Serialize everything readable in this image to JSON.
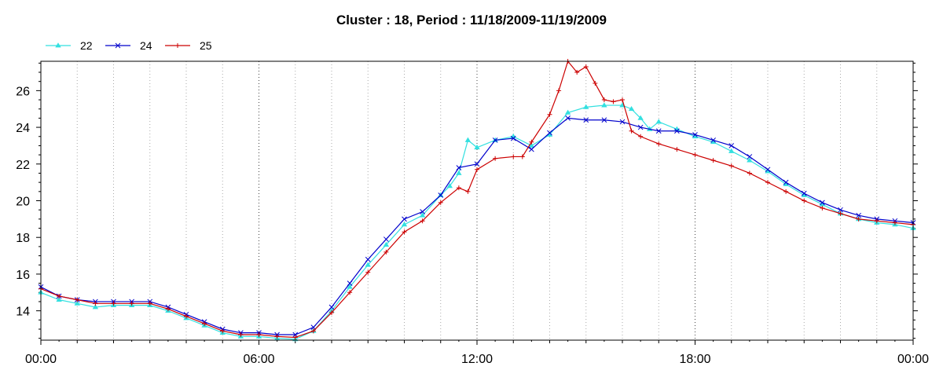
{
  "chart_data": {
    "type": "line",
    "title": "Cluster : 18, Period : 11/18/2009-11/19/2009",
    "xlabel": "",
    "ylabel": "",
    "x_unit": "hours",
    "xlim": [
      0,
      24
    ],
    "ylim": [
      12.4,
      27.6
    ],
    "x_ticks": [
      0,
      6,
      12,
      18,
      24
    ],
    "x_tick_labels": [
      "00:00",
      "06:00",
      "12:00",
      "18:00",
      "00:00"
    ],
    "y_ticks": [
      14,
      16,
      18,
      20,
      22,
      24,
      26
    ],
    "y_tick_labels": [
      "14",
      "16",
      "18",
      "20",
      "22",
      "24",
      "26"
    ],
    "grid": "vertical-dotted",
    "legend_position": "top-left",
    "series": [
      {
        "name": "22",
        "color": "#33e0e0",
        "marker": "triangle",
        "x": [
          0,
          0.5,
          1,
          1.5,
          2,
          2.5,
          3,
          3.5,
          4,
          4.5,
          5,
          5.5,
          6,
          6.5,
          7,
          7.5,
          8,
          8.5,
          9,
          9.5,
          10,
          10.5,
          11,
          11.25,
          11.5,
          11.75,
          12,
          12.5,
          13,
          13.5,
          14,
          14.5,
          15,
          15.5,
          16,
          16.25,
          16.5,
          16.75,
          17,
          17.5,
          18,
          18.5,
          19,
          19.5,
          20,
          20.5,
          21,
          21.5,
          22,
          22.5,
          23,
          23.5,
          24
        ],
        "y": [
          15.0,
          14.6,
          14.4,
          14.2,
          14.3,
          14.3,
          14.3,
          14.0,
          13.6,
          13.2,
          12.8,
          12.6,
          12.6,
          12.5,
          12.45,
          12.9,
          14.0,
          15.3,
          16.5,
          17.6,
          18.7,
          19.2,
          20.3,
          20.8,
          21.5,
          23.3,
          22.9,
          23.3,
          23.5,
          23.0,
          23.6,
          24.8,
          25.1,
          25.2,
          25.2,
          25.0,
          24.5,
          23.9,
          24.3,
          23.9,
          23.5,
          23.2,
          22.7,
          22.2,
          21.6,
          20.9,
          20.3,
          19.8,
          19.3,
          19.0,
          18.8,
          18.7,
          18.5
        ]
      },
      {
        "name": "24",
        "color": "#0000cc",
        "marker": "x",
        "x": [
          0,
          0.5,
          1,
          1.5,
          2,
          2.5,
          3,
          3.5,
          4,
          4.5,
          5,
          5.5,
          6,
          6.5,
          7,
          7.5,
          8,
          8.5,
          9,
          9.5,
          10,
          10.5,
          11,
          11.5,
          12,
          12.5,
          13,
          13.5,
          14,
          14.5,
          15,
          15.5,
          16,
          16.5,
          17,
          17.5,
          18,
          18.5,
          19,
          19.5,
          20,
          20.5,
          21,
          21.5,
          22,
          22.5,
          23,
          23.5,
          24
        ],
        "y": [
          15.3,
          14.8,
          14.6,
          14.5,
          14.5,
          14.5,
          14.5,
          14.2,
          13.8,
          13.4,
          13.0,
          12.8,
          12.8,
          12.7,
          12.7,
          13.1,
          14.2,
          15.5,
          16.8,
          17.9,
          19.0,
          19.4,
          20.3,
          21.8,
          22.0,
          23.3,
          23.4,
          22.8,
          23.7,
          24.5,
          24.4,
          24.4,
          24.3,
          24.0,
          23.8,
          23.8,
          23.6,
          23.3,
          23.0,
          22.4,
          21.7,
          21.0,
          20.4,
          19.9,
          19.5,
          19.2,
          19.0,
          18.9,
          18.8
        ]
      },
      {
        "name": "25",
        "color": "#cc0000",
        "marker": "plus",
        "x": [
          0,
          0.5,
          1,
          1.5,
          2,
          2.5,
          3,
          3.5,
          4,
          4.5,
          5,
          5.5,
          6,
          6.5,
          7,
          7.5,
          8,
          8.5,
          9,
          9.5,
          10,
          10.5,
          11,
          11.5,
          11.75,
          12,
          12.5,
          13,
          13.25,
          13.5,
          14,
          14.25,
          14.5,
          14.75,
          15,
          15.25,
          15.5,
          15.75,
          16,
          16.25,
          16.5,
          17,
          17.5,
          18,
          18.5,
          19,
          19.5,
          20,
          20.5,
          21,
          21.5,
          22,
          22.5,
          23,
          23.5,
          24
        ],
        "y": [
          15.2,
          14.8,
          14.6,
          14.4,
          14.4,
          14.4,
          14.4,
          14.1,
          13.7,
          13.3,
          12.9,
          12.7,
          12.7,
          12.6,
          12.55,
          12.9,
          13.9,
          15.0,
          16.1,
          17.2,
          18.3,
          18.9,
          19.9,
          20.7,
          20.5,
          21.7,
          22.3,
          22.4,
          22.4,
          23.2,
          24.7,
          26.0,
          27.6,
          27.0,
          27.3,
          26.4,
          25.5,
          25.4,
          25.5,
          23.8,
          23.5,
          23.1,
          22.8,
          22.5,
          22.2,
          21.9,
          21.5,
          21.0,
          20.5,
          20.0,
          19.6,
          19.3,
          19.0,
          18.9,
          18.8,
          18.7
        ]
      }
    ]
  }
}
